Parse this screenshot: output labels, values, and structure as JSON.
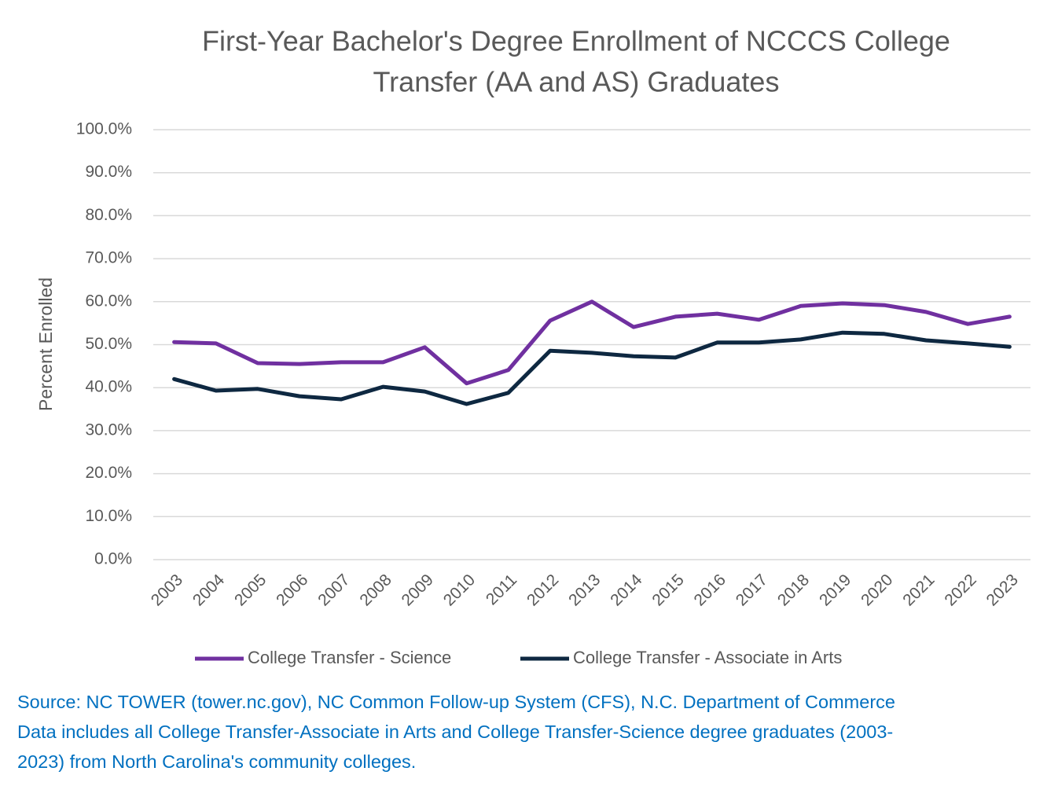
{
  "chart_data": {
    "type": "line",
    "title": [
      "First-Year Bachelor's Degree Enrollment of NCCCS College",
      "Transfer (AA and AS) Graduates"
    ],
    "y_label": "Percent Enrolled",
    "categories": [
      "2003",
      "2004",
      "2005",
      "2006",
      "2007",
      "2008",
      "2009",
      "2010",
      "2011",
      "2012",
      "2013",
      "2014",
      "2015",
      "2016",
      "2017",
      "2018",
      "2019",
      "2020",
      "2021",
      "2022",
      "2023"
    ],
    "series": [
      {
        "name": "College Transfer - Science",
        "color": "#7030a0",
        "values": [
          50.6,
          50.3,
          45.7,
          45.5,
          45.9,
          45.9,
          49.4,
          41.0,
          44.1,
          55.6,
          60.0,
          54.1,
          56.5,
          57.2,
          55.8,
          59.0,
          59.6,
          59.2,
          57.6,
          54.8,
          56.5
        ]
      },
      {
        "name": "College Transfer - Associate in Arts",
        "color": "#0e2841",
        "values": [
          42.0,
          39.3,
          39.7,
          38.0,
          37.3,
          40.2,
          39.1,
          36.2,
          38.8,
          48.6,
          48.1,
          47.3,
          47.0,
          50.5,
          50.5,
          51.2,
          52.8,
          52.5,
          51.0,
          50.3,
          49.5
        ]
      }
    ],
    "ylim": [
      0,
      100
    ],
    "yticks": [
      {
        "value": 0,
        "label": "0.0%"
      },
      {
        "value": 10,
        "label": "10.0%"
      },
      {
        "value": 20,
        "label": "20.0%"
      },
      {
        "value": 30,
        "label": "30.0%"
      },
      {
        "value": 40,
        "label": "40.0%"
      },
      {
        "value": 50,
        "label": "50.0%"
      },
      {
        "value": 60,
        "label": "60.0%"
      },
      {
        "value": 70,
        "label": "70.0%"
      },
      {
        "value": 80,
        "label": "80.0%"
      },
      {
        "value": 90,
        "label": "90.0%"
      },
      {
        "value": 100,
        "label": "100.0%"
      }
    ],
    "grid": true,
    "legend": "bottom",
    "notes": [
      "Source: NC TOWER (tower.nc.gov), NC Common Follow-up System (CFS), N.C. Department of Commerce",
      "Data includes all College Transfer-Associate in Arts and College Transfer-Science degree graduates (2003-",
      "2023) from North Carolina's community colleges."
    ]
  }
}
